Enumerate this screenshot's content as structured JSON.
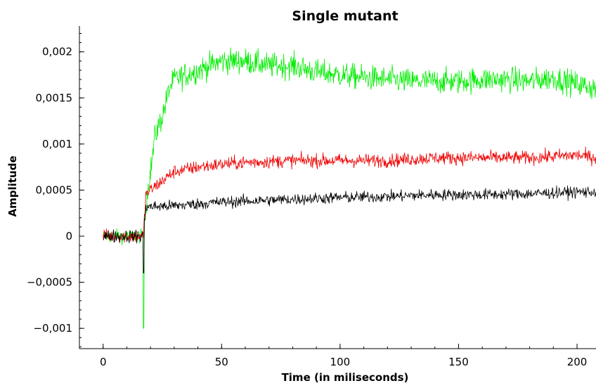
{
  "chart_data": {
    "type": "line",
    "title": "Single mutant",
    "xlabel": "Time (in miliseconds)",
    "ylabel": "Amplitude",
    "xlim": [
      -10,
      208
    ],
    "ylim": [
      -0.00122,
      0.00228
    ],
    "xticks": [
      0,
      50,
      100,
      150,
      200
    ],
    "xtick_labels": [
      "0",
      "50",
      "100",
      "150",
      "200"
    ],
    "yticks": [
      -0.001,
      -0.0005,
      0,
      0.0005,
      0.001,
      0.0015,
      0.002
    ],
    "ytick_labels": [
      "−0,001",
      "−0,0005",
      "0",
      "0,0005",
      "0,001",
      "0,0015",
      "0,002"
    ],
    "grid": false,
    "series": [
      {
        "color": "#00ee00",
        "x": [
          0,
          5,
          10,
          15,
          17,
          18,
          20,
          22,
          25,
          28,
          30,
          35,
          40,
          45,
          50,
          55,
          60,
          70,
          80,
          90,
          100,
          110,
          120,
          130,
          140,
          150,
          160,
          170,
          180,
          190,
          200,
          208
        ],
        "values": [
          0,
          0,
          0,
          0,
          0,
          0.00035,
          0.0007,
          0.0011,
          0.0013,
          0.0016,
          0.0017,
          0.00175,
          0.0018,
          0.00185,
          0.0019,
          0.0019,
          0.0019,
          0.00185,
          0.00185,
          0.00178,
          0.00175,
          0.00172,
          0.0017,
          0.00168,
          0.00168,
          0.00168,
          0.0017,
          0.0017,
          0.00168,
          0.00172,
          0.00165,
          0.0016
        ],
        "noise": 0.00013
      },
      {
        "color": "#ee0000",
        "x": [
          0,
          5,
          10,
          15,
          17,
          18,
          20,
          25,
          30,
          40,
          50,
          60,
          80,
          100,
          120,
          140,
          160,
          180,
          200,
          208
        ],
        "values": [
          0,
          0,
          0,
          0,
          0,
          0.00045,
          0.0005,
          0.0006,
          0.0007,
          0.00075,
          0.00078,
          0.0008,
          0.00082,
          0.00082,
          0.00082,
          0.00085,
          0.00085,
          0.00085,
          0.00088,
          0.00085
        ],
        "noise": 7e-05
      },
      {
        "color": "#000000",
        "x": [
          0,
          5,
          10,
          15,
          17,
          18,
          20,
          30,
          40,
          50,
          60,
          80,
          100,
          120,
          140,
          160,
          180,
          200,
          208
        ],
        "values": [
          0,
          0,
          0,
          0,
          0,
          0.00032,
          0.00032,
          0.00033,
          0.00035,
          0.00037,
          0.00038,
          0.0004,
          0.00042,
          0.00043,
          0.00045,
          0.00045,
          0.00046,
          0.00048,
          0.00048
        ],
        "noise": 6e-05
      }
    ]
  }
}
